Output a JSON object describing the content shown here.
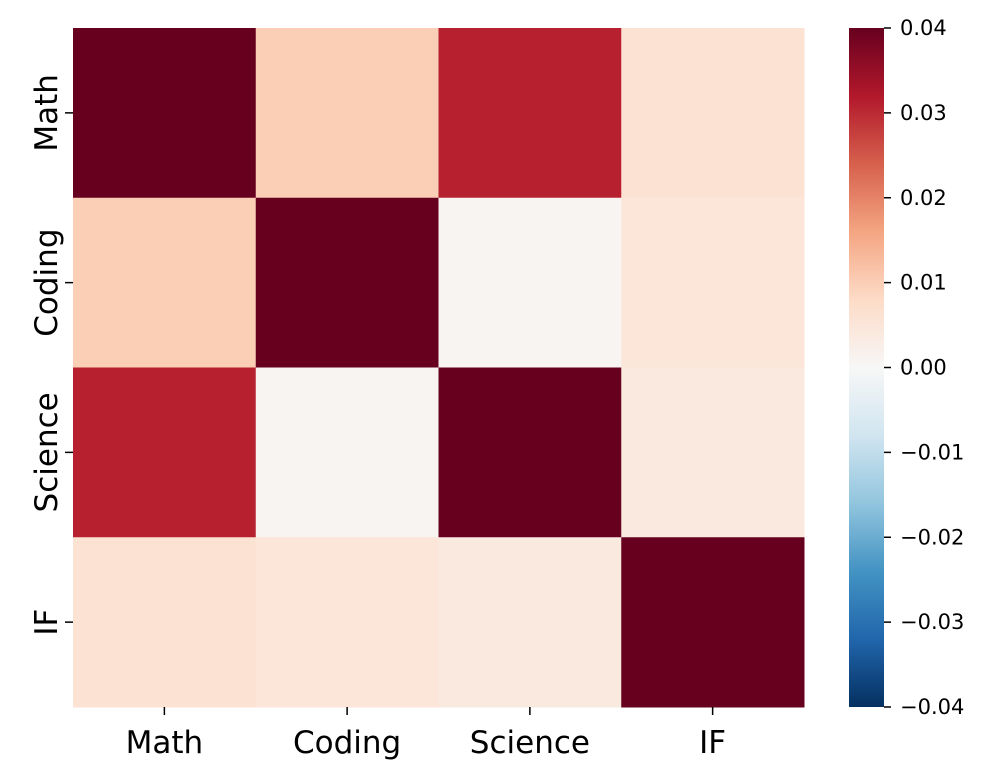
{
  "chart_data": {
    "type": "heatmap",
    "title": "",
    "xlabel": "",
    "ylabel": "",
    "x_categories": [
      "Math",
      "Coding",
      "Science",
      "IF"
    ],
    "y_categories": [
      "Math",
      "Coding",
      "Science",
      "IF"
    ],
    "values": [
      [
        0.04,
        0.01,
        0.031,
        0.006
      ],
      [
        0.01,
        0.04,
        0.001,
        0.005
      ],
      [
        0.031,
        0.001,
        0.04,
        0.004
      ],
      [
        0.006,
        0.005,
        0.004,
        0.04
      ]
    ],
    "colorscale": "RdBu_r",
    "vmin": -0.04,
    "vmax": 0.04,
    "colorbar": {
      "placement": "right",
      "ticks": [
        0.04,
        0.03,
        0.02,
        0.01,
        0.0,
        -0.01,
        -0.02,
        -0.03,
        -0.04
      ],
      "tick_labels": [
        "0.04",
        "0.03",
        "0.02",
        "0.01",
        "0.00",
        "−0.01",
        "−0.02",
        "−0.03",
        "−0.04"
      ]
    },
    "grid": false
  }
}
